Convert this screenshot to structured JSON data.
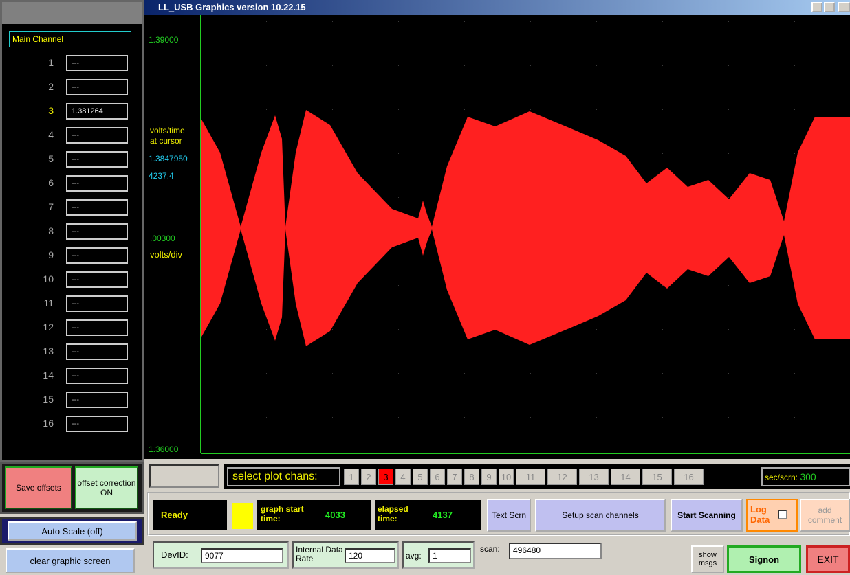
{
  "window": {
    "title": "LL_USB Graphics  version 10.22.15"
  },
  "channels_panel": {
    "header": "Main Channel",
    "channels": [
      {
        "number": "1",
        "value": "---"
      },
      {
        "number": "2",
        "value": "---"
      },
      {
        "number": "3",
        "value": "1.381264"
      },
      {
        "number": "4",
        "value": "---"
      },
      {
        "number": "5",
        "value": "---"
      },
      {
        "number": "6",
        "value": "---"
      },
      {
        "number": "7",
        "value": "---"
      },
      {
        "number": "8",
        "value": "---"
      },
      {
        "number": "9",
        "value": "---"
      },
      {
        "number": "10",
        "value": "---"
      },
      {
        "number": "11",
        "value": "---"
      },
      {
        "number": "12",
        "value": "---"
      },
      {
        "number": "13",
        "value": "---"
      },
      {
        "number": "14",
        "value": "---"
      },
      {
        "number": "15",
        "value": "---"
      },
      {
        "number": "16",
        "value": "---"
      }
    ],
    "save_offsets": "Save offsets",
    "offset_correction": "offset correction ON",
    "auto_scale": "Auto Scale  (off)",
    "clear_screen": "clear graphic screen"
  },
  "plot": {
    "y_max": "1.39000",
    "y_min": "1.36000",
    "cursor_label_1": "volts/time",
    "cursor_label_2": "at cursor",
    "cursor_volts": "1.3847950",
    "cursor_time": "4237.4",
    "scale": ".00300",
    "scale_unit": "volts/div"
  },
  "plot_channels": {
    "label": "select plot chans:",
    "channels": [
      "1",
      "2",
      "3",
      "4",
      "5",
      "6",
      "7",
      "8",
      "9",
      "10",
      "11",
      "12",
      "13",
      "14",
      "15",
      "16"
    ],
    "sec_label": "sec/scrn:",
    "sec_value": "300"
  },
  "status": {
    "state": "Ready",
    "graph_start_label": "graph start time:",
    "graph_start": "4033",
    "elapsed_label": "elapsed time:",
    "elapsed": "4137",
    "text_screen": "Text Scrn",
    "setup": "Setup scan channels",
    "start": "Start Scanning",
    "log_data": "Log Data",
    "add_comment": "add comment"
  },
  "controls": {
    "devid_label": "DevID:",
    "devid": "9077",
    "rate_label": "Internal Data Rate",
    "rate": "120",
    "avg_label": "avg:",
    "avg": "1",
    "scan_label": "scan:",
    "scan": "496480",
    "show_msgs": "show msgs",
    "signon": "Signon",
    "exit": "EXIT"
  }
}
